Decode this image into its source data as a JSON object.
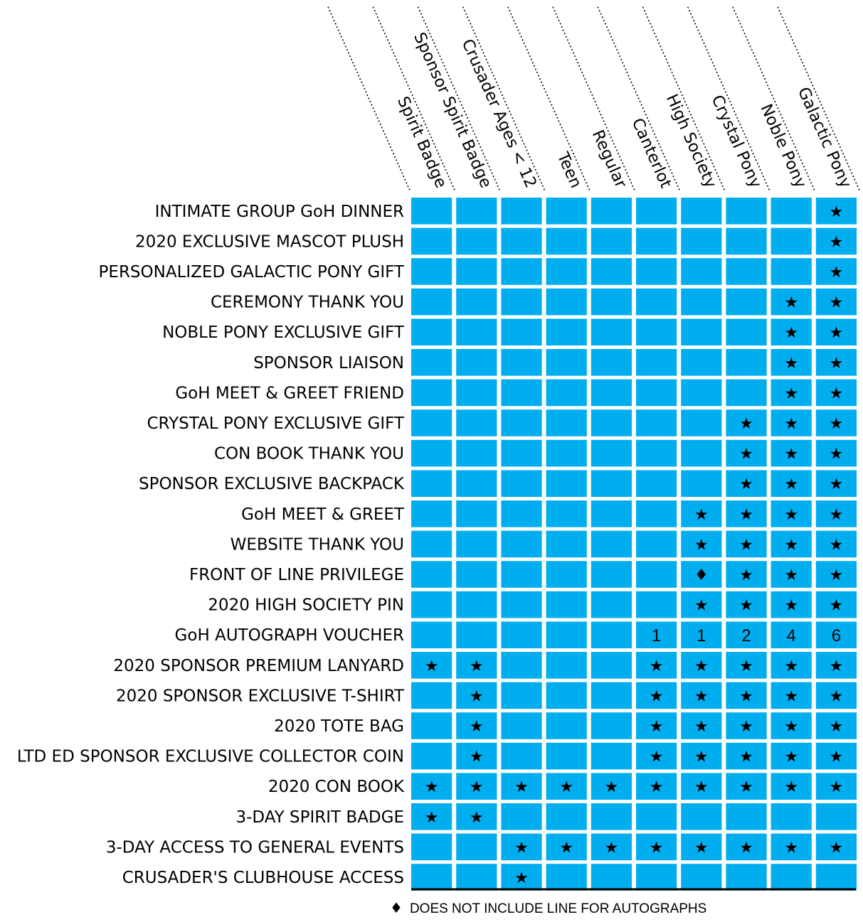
{
  "chart_data": {
    "type": "table",
    "columns": [
      "Spirit Badge",
      "Sponsor Spirit Badge",
      "Crusader Ages < 12",
      "Teen",
      "Regular",
      "Canterlot",
      "High Society",
      "Crystal Pony",
      "Noble Pony",
      "Galactic Pony"
    ],
    "rows": [
      {
        "label": "INTIMATE GROUP GoH DINNER",
        "cells": [
          "",
          "",
          "",
          "",
          "",
          "",
          "",
          "",
          "",
          "★"
        ]
      },
      {
        "label": "2020 EXCLUSIVE MASCOT PLUSH",
        "cells": [
          "",
          "",
          "",
          "",
          "",
          "",
          "",
          "",
          "",
          "★"
        ]
      },
      {
        "label": "PERSONALIZED GALACTIC PONY GIFT",
        "cells": [
          "",
          "",
          "",
          "",
          "",
          "",
          "",
          "",
          "",
          "★"
        ]
      },
      {
        "label": "CEREMONY THANK YOU",
        "cells": [
          "",
          "",
          "",
          "",
          "",
          "",
          "",
          "",
          "★",
          "★"
        ]
      },
      {
        "label": "NOBLE PONY EXCLUSIVE GIFT",
        "cells": [
          "",
          "",
          "",
          "",
          "",
          "",
          "",
          "",
          "★",
          "★"
        ]
      },
      {
        "label": "SPONSOR LIAISON",
        "cells": [
          "",
          "",
          "",
          "",
          "",
          "",
          "",
          "",
          "★",
          "★"
        ]
      },
      {
        "label": "GoH MEET & GREET FRIEND",
        "cells": [
          "",
          "",
          "",
          "",
          "",
          "",
          "",
          "",
          "★",
          "★"
        ]
      },
      {
        "label": "CRYSTAL PONY EXCLUSIVE GIFT",
        "cells": [
          "",
          "",
          "",
          "",
          "",
          "",
          "",
          "★",
          "★",
          "★"
        ]
      },
      {
        "label": "CON BOOK THANK YOU",
        "cells": [
          "",
          "",
          "",
          "",
          "",
          "",
          "",
          "★",
          "★",
          "★"
        ]
      },
      {
        "label": "SPONSOR EXCLUSIVE BACKPACK",
        "cells": [
          "",
          "",
          "",
          "",
          "",
          "",
          "",
          "★",
          "★",
          "★"
        ]
      },
      {
        "label": "GoH MEET & GREET",
        "cells": [
          "",
          "",
          "",
          "",
          "",
          "",
          "★",
          "★",
          "★",
          "★"
        ]
      },
      {
        "label": "WEBSITE THANK YOU",
        "cells": [
          "",
          "",
          "",
          "",
          "",
          "",
          "★",
          "★",
          "★",
          "★"
        ]
      },
      {
        "label": "FRONT OF LINE PRIVILEGE",
        "cells": [
          "",
          "",
          "",
          "",
          "",
          "",
          "♦",
          "★",
          "★",
          "★"
        ]
      },
      {
        "label": "2020 HIGH SOCIETY PIN",
        "cells": [
          "",
          "",
          "",
          "",
          "",
          "",
          "★",
          "★",
          "★",
          "★"
        ]
      },
      {
        "label": "GoH AUTOGRAPH VOUCHER",
        "cells": [
          "",
          "",
          "",
          "",
          "",
          "1",
          "1",
          "2",
          "4",
          "6"
        ]
      },
      {
        "label": "2020 SPONSOR PREMIUM LANYARD",
        "cells": [
          "★",
          "★",
          "",
          "",
          "",
          "★",
          "★",
          "★",
          "★",
          "★"
        ]
      },
      {
        "label": "2020 SPONSOR EXCLUSIVE T-SHIRT",
        "cells": [
          "",
          "★",
          "",
          "",
          "",
          "★",
          "★",
          "★",
          "★",
          "★"
        ]
      },
      {
        "label": "2020 TOTE BAG",
        "cells": [
          "",
          "★",
          "",
          "",
          "",
          "★",
          "★",
          "★",
          "★",
          "★"
        ]
      },
      {
        "label": "LTD ED SPONSOR EXCLUSIVE COLLECTOR COIN",
        "cells": [
          "",
          "★",
          "",
          "",
          "",
          "★",
          "★",
          "★",
          "★",
          "★"
        ]
      },
      {
        "label": "2020 CON BOOK",
        "cells": [
          "★",
          "★",
          "★",
          "★",
          "★",
          "★",
          "★",
          "★",
          "★",
          "★"
        ]
      },
      {
        "label": "3-DAY SPIRIT BADGE",
        "cells": [
          "★",
          "★",
          "",
          "",
          "",
          "",
          "",
          "",
          "",
          ""
        ]
      },
      {
        "label": "3-DAY ACCESS TO GENERAL EVENTS",
        "cells": [
          "",
          "",
          "★",
          "★",
          "★",
          "★",
          "★",
          "★",
          "★",
          "★"
        ]
      },
      {
        "label": "CRUSADER'S CLUBHOUSE ACCESS",
        "cells": [
          "",
          "",
          "★",
          "",
          "",
          "",
          "",
          "",
          "",
          ""
        ]
      }
    ],
    "colors": {
      "cell": "#00aeef",
      "mark": "#000000"
    }
  },
  "legend": {
    "symbol": "♦",
    "text": "DOES NOT INCLUDE LINE FOR AUTOGRAPHS"
  }
}
